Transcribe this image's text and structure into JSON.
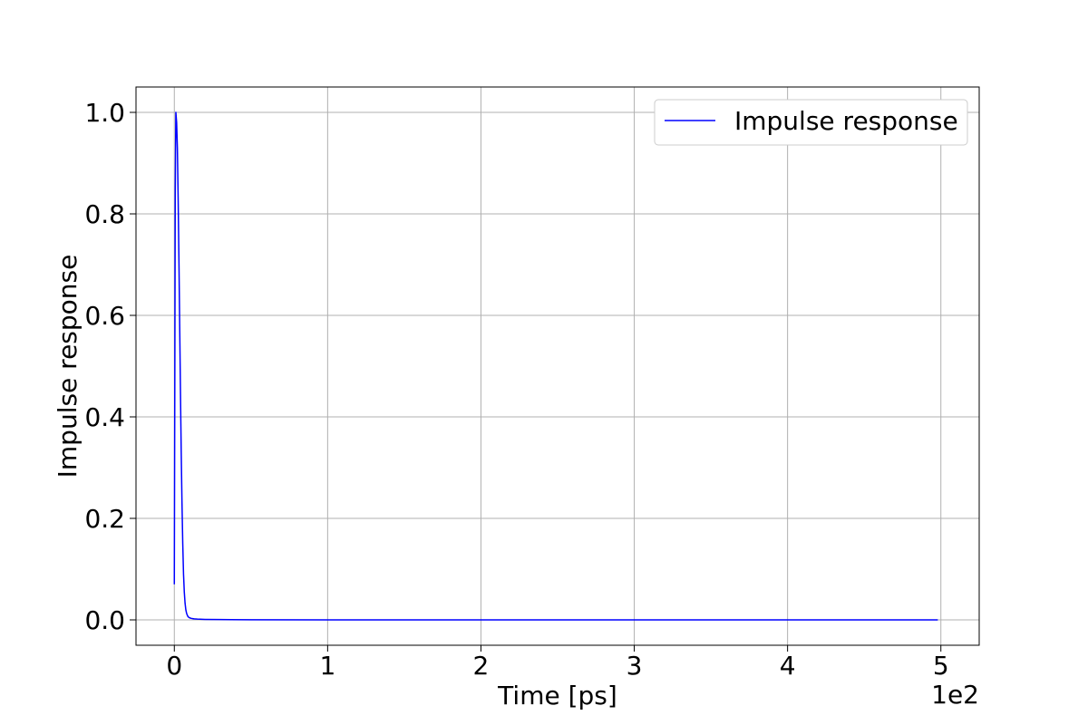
{
  "chart_data": {
    "type": "line",
    "title": "",
    "xlabel": "Time [ps]",
    "ylabel": "Impulse response",
    "x_offset_text": "1e2",
    "xlim": [
      -0.25,
      5.25
    ],
    "ylim": [
      -0.05,
      1.05
    ],
    "x_ticks": [
      0,
      1,
      2,
      3,
      4,
      5
    ],
    "y_ticks": [
      0.0,
      0.2,
      0.4,
      0.6,
      0.8,
      1.0
    ],
    "x_tick_labels": [
      "0",
      "1",
      "2",
      "3",
      "4",
      "5"
    ],
    "y_tick_labels": [
      "0.0",
      "0.2",
      "0.4",
      "0.6",
      "0.8",
      "1.0"
    ],
    "grid": true,
    "legend": {
      "position": "top-right",
      "entries": [
        "Impulse response"
      ]
    },
    "series": [
      {
        "name": "Impulse response",
        "color": "#0000ff",
        "x": [
          0.0,
          0.003,
          0.006,
          0.01,
          0.015,
          0.02,
          0.025,
          0.03,
          0.035,
          0.04,
          0.045,
          0.05,
          0.055,
          0.06,
          0.065,
          0.07,
          0.075,
          0.08,
          0.085,
          0.09,
          0.1,
          0.11,
          0.12,
          0.13,
          0.15,
          0.2,
          0.3,
          0.5,
          1.0,
          2.0,
          3.0,
          4.0,
          4.98
        ],
        "y": [
          0.07,
          0.45,
          0.85,
          1.0,
          0.98,
          0.93,
          0.83,
          0.71,
          0.58,
          0.45,
          0.33,
          0.23,
          0.15,
          0.09,
          0.055,
          0.033,
          0.02,
          0.013,
          0.009,
          0.006,
          0.004,
          0.003,
          0.0025,
          0.002,
          0.0015,
          0.001,
          0.0006,
          0.0003,
          0.0001,
          0.0,
          0.0,
          0.0,
          0.0
        ]
      }
    ]
  }
}
